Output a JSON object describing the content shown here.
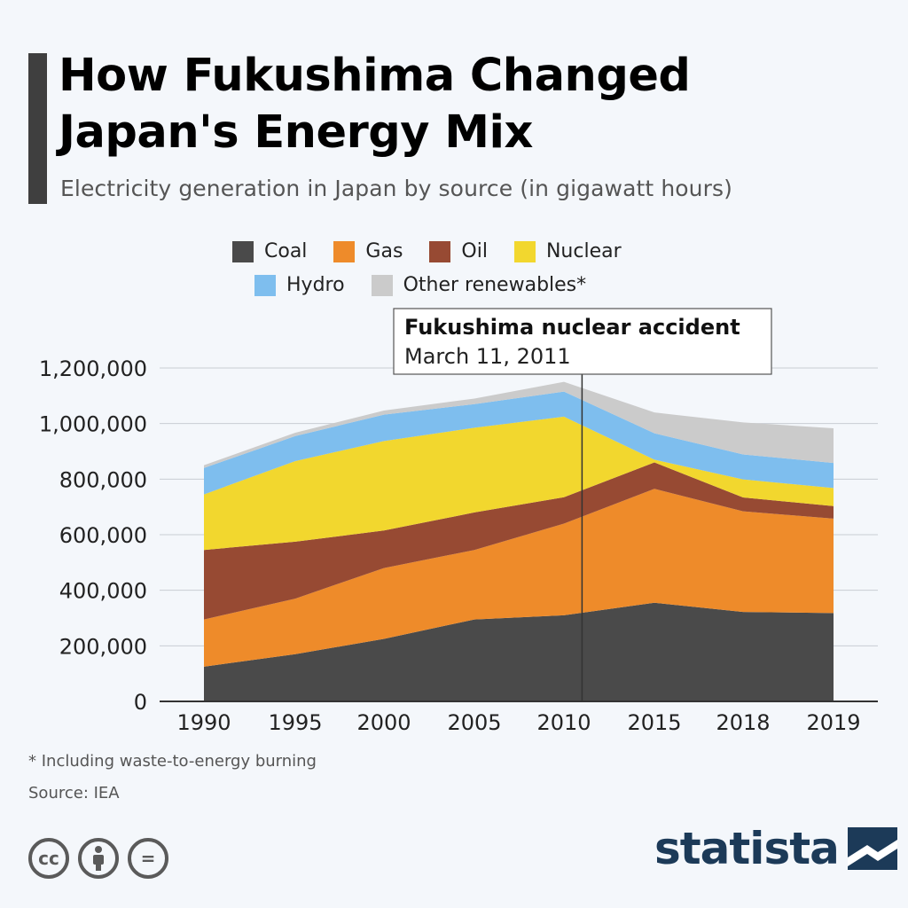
{
  "header": {
    "title_line1": "How Fukushima Changed",
    "title_line2": "Japan's Energy Mix",
    "subtitle": "Electricity generation in Japan by source (in gigawatt hours)"
  },
  "legend_rows": [
    [
      "Coal",
      "Gas",
      "Oil",
      "Nuclear"
    ],
    [
      "Hydro",
      "Other renewables*"
    ]
  ],
  "annotation": {
    "title": "Fukushima nuclear accident",
    "date": "March 11, 2011",
    "x_position": 2011
  },
  "chart_data": {
    "type": "area",
    "stacked": true,
    "categories": [
      "1990",
      "1995",
      "2000",
      "2005",
      "2010",
      "2015",
      "2018",
      "2019"
    ],
    "ylim": [
      0,
      1200000
    ],
    "yticks": [
      0,
      200000,
      400000,
      600000,
      800000,
      1000000,
      1200000
    ],
    "ytick_labels": [
      "0",
      "200,000",
      "400,000",
      "600,000",
      "800,000",
      "1,000,000",
      "1,200,000"
    ],
    "grid": true,
    "legend_position": "top",
    "series": [
      {
        "name": "Coal",
        "color": "#4a4a4a",
        "values": [
          125000,
          170000,
          225000,
          295000,
          310000,
          355000,
          322000,
          318000
        ]
      },
      {
        "name": "Gas",
        "color": "#ee8b2a",
        "values": [
          170000,
          200000,
          255000,
          250000,
          330000,
          410000,
          362000,
          340000
        ]
      },
      {
        "name": "Oil",
        "color": "#974a33",
        "values": [
          250000,
          205000,
          135000,
          135000,
          95000,
          95000,
          50000,
          45000
        ]
      },
      {
        "name": "Nuclear",
        "color": "#f2d72e",
        "values": [
          200000,
          290000,
          322000,
          305000,
          290000,
          10000,
          65000,
          65000
        ]
      },
      {
        "name": "Hydro",
        "color": "#7ebeee",
        "values": [
          95000,
          90000,
          95000,
          85000,
          90000,
          95000,
          90000,
          90000
        ]
      },
      {
        "name": "Other renewables*",
        "color": "#cbcbcb",
        "values": [
          10000,
          12000,
          15000,
          20000,
          35000,
          75000,
          115000,
          125000
        ]
      }
    ]
  },
  "footnote": "* Including waste-to-energy burning",
  "source": "Source: IEA",
  "brand": {
    "name": "statista"
  },
  "license_icons": [
    "cc-icon",
    "attribution-icon",
    "no-derivatives-icon"
  ],
  "license_labels": {
    "cc": "cc",
    "nd": "="
  }
}
